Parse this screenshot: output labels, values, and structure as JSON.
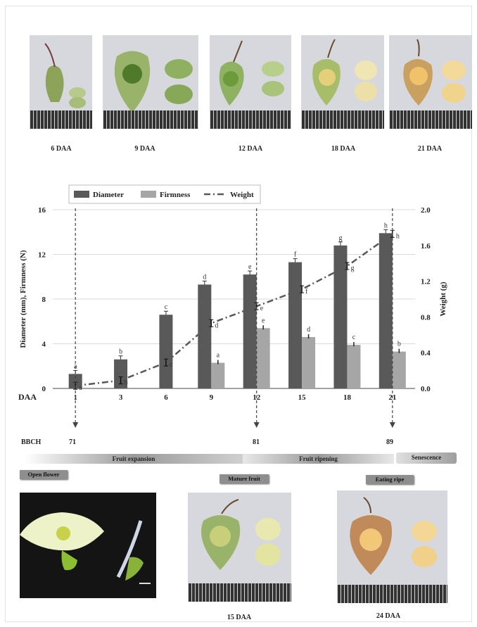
{
  "top_captions": [
    "6 DAA",
    "9 DAA",
    "12 DAA",
    "18 DAA",
    "21 DAA"
  ],
  "bottom_captions": [
    "15 DAA",
    "24 DAA"
  ],
  "bbch": {
    "label": "BBCH",
    "values": [
      "71",
      "81",
      "89"
    ]
  },
  "phases": [
    "Fruit expansion",
    "Fruit ripening",
    "Senescence"
  ],
  "stage_tags": [
    "Open flower",
    "Mature fruit",
    "Eating ripe"
  ],
  "chart_data": {
    "type": "bar",
    "xlabel": "DAA",
    "ylabel_left": "Diameter (mm), Firmness (N)",
    "ylabel_right": "Weight (g)",
    "categories": [
      "1",
      "3",
      "6",
      "9",
      "12",
      "15",
      "18",
      "21"
    ],
    "ylim_left": [
      0,
      16
    ],
    "ylim_right": [
      0,
      2.0
    ],
    "yticks_left": [
      "0",
      "4",
      "8",
      "12",
      "16"
    ],
    "yticks_right": [
      "0.0",
      "0.4",
      "0.8",
      "1.2",
      "1.6",
      "2.0"
    ],
    "legend_position": "top",
    "grid": "horizontal",
    "series": [
      {
        "name": "Diameter",
        "kind": "bar",
        "axis": "left",
        "color": "#595959",
        "values": [
          1.3,
          2.6,
          6.6,
          9.3,
          10.2,
          11.3,
          12.8,
          13.9
        ],
        "letters": [
          "a",
          "b",
          "c",
          "d",
          "e",
          "f",
          "g",
          "h"
        ]
      },
      {
        "name": "Firmness",
        "kind": "bar",
        "axis": "left",
        "color": "#a6a6a6",
        "values": [
          null,
          null,
          null,
          2.3,
          5.4,
          4.6,
          3.9,
          3.3
        ],
        "letters": [
          "",
          "",
          "",
          "a",
          "e",
          "d",
          "c",
          "b"
        ]
      },
      {
        "name": "Weight",
        "kind": "line",
        "axis": "right",
        "color": "#595959",
        "values": [
          0.03,
          0.09,
          0.29,
          0.73,
          0.92,
          1.11,
          1.37,
          1.73
        ],
        "letters": [
          "a",
          "b",
          "c",
          "d",
          "e",
          "f",
          "g",
          "h"
        ]
      }
    ],
    "marked_days": [
      "1",
      "12",
      "21"
    ]
  }
}
